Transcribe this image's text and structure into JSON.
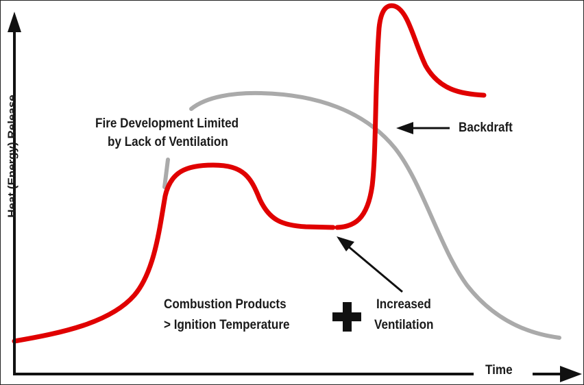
{
  "axes": {
    "y_label": "Heat (Energy) Release",
    "x_label": "Time"
  },
  "annotations": {
    "fire_limited_line1": "Fire Development Limited",
    "fire_limited_line2": "by Lack of Ventilation",
    "backdraft": "Backdraft",
    "combustion_line1": "Combustion Products",
    "combustion_line2": "> Ignition Temperature",
    "plus": "+",
    "ventilation_line1": "Increased",
    "ventilation_line2": "Ventilation"
  },
  "colors": {
    "backdraft_curve": "#e00000",
    "normal_fire_curve": "#aaaaaa",
    "axes": "#111111"
  }
}
